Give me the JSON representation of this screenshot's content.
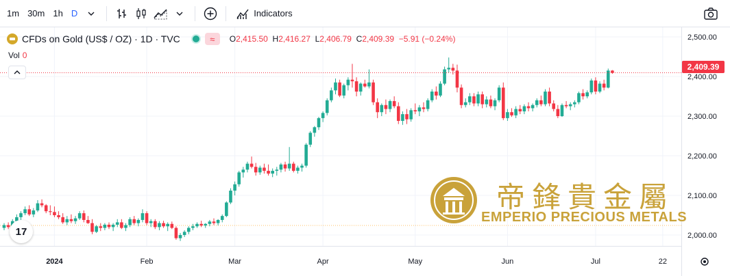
{
  "toolbar": {
    "intervals": [
      {
        "label": "1m",
        "active": false
      },
      {
        "label": "30m",
        "active": false
      },
      {
        "label": "1h",
        "active": false
      },
      {
        "label": "D",
        "active": true
      }
    ],
    "indicators_label": "Indicators",
    "icons": [
      "chevron-down-icon",
      "bar-style-icon",
      "candle-style-icon",
      "area-style-icon",
      "chevron-down-icon",
      "plus-circle-icon",
      "indicators-icon",
      "camera-icon"
    ]
  },
  "legend": {
    "symbol": "CFDs on Gold (US$ / OZ) · 1D · TVC",
    "o_key": "O",
    "o": "2,415.50",
    "h_key": "H",
    "h": "2,416.27",
    "l_key": "L",
    "l": "2,406.79",
    "c_key": "C",
    "c": "2,409.39",
    "change": "−5.91 (−0.24%)",
    "vol_label": "Vol",
    "vol_value": "0"
  },
  "price_label": "2,409.39",
  "watermark": {
    "cn": "帝鋒貴金屬",
    "en": "EMPERIO PRECIOUS METALS"
  },
  "colors": {
    "up": "#22ab94",
    "down": "#f23645",
    "gold": "#c9a23a",
    "accent": "#2962ff"
  },
  "chart_data": {
    "type": "candlestick",
    "title": "CFDs on Gold (US$ / OZ) · 1D · TVC",
    "ylim": [
      1980,
      2510
    ],
    "yticks": [
      {
        "v": 2000,
        "label": "2,000.00"
      },
      {
        "v": 2100,
        "label": "2,100.00"
      },
      {
        "v": 2200,
        "label": "2,200.00"
      },
      {
        "v": 2300,
        "label": "2,300.00"
      },
      {
        "v": 2400,
        "label": "2,400.00"
      },
      {
        "v": 2500,
        "label": "2,500.00"
      }
    ],
    "xticks": [
      {
        "i": 12,
        "label": "2024",
        "bold": true
      },
      {
        "i": 34,
        "label": "Feb",
        "bold": false
      },
      {
        "i": 55,
        "label": "Mar",
        "bold": false
      },
      {
        "i": 76,
        "label": "Apr",
        "bold": false
      },
      {
        "i": 98,
        "label": "May",
        "bold": false
      },
      {
        "i": 120,
        "label": "Jun",
        "bold": false
      },
      {
        "i": 141,
        "label": "Jul",
        "bold": false
      },
      {
        "i": 157,
        "label": "22",
        "bold": false
      }
    ],
    "last_price": 2409.39,
    "candles": [
      [
        2018,
        2030,
        2012,
        2025
      ],
      [
        2025,
        2032,
        2015,
        2020
      ],
      [
        2020,
        2040,
        2018,
        2035
      ],
      [
        2035,
        2052,
        2028,
        2045
      ],
      [
        2045,
        2060,
        2038,
        2055
      ],
      [
        2055,
        2072,
        2050,
        2065
      ],
      [
        2065,
        2075,
        2048,
        2052
      ],
      [
        2052,
        2068,
        2045,
        2062
      ],
      [
        2062,
        2088,
        2058,
        2080
      ],
      [
        2080,
        2090,
        2070,
        2075
      ],
      [
        2075,
        2078,
        2055,
        2060
      ],
      [
        2060,
        2075,
        2050,
        2058
      ],
      [
        2058,
        2072,
        2045,
        2050
      ],
      [
        2050,
        2060,
        2040,
        2045
      ],
      [
        2045,
        2055,
        2028,
        2032
      ],
      [
        2032,
        2048,
        2025,
        2040
      ],
      [
        2040,
        2052,
        2030,
        2035
      ],
      [
        2035,
        2048,
        2028,
        2042
      ],
      [
        2042,
        2060,
        2038,
        2055
      ],
      [
        2055,
        2062,
        2032,
        2038
      ],
      [
        2038,
        2048,
        2028,
        2030
      ],
      [
        2030,
        2040,
        2002,
        2008
      ],
      [
        2008,
        2025,
        2005,
        2022
      ],
      [
        2022,
        2030,
        2010,
        2018
      ],
      [
        2018,
        2030,
        2012,
        2026
      ],
      [
        2026,
        2032,
        2015,
        2020
      ],
      [
        2020,
        2030,
        2010,
        2026
      ],
      [
        2026,
        2040,
        2020,
        2032
      ],
      [
        2032,
        2040,
        2015,
        2018
      ],
      [
        2018,
        2030,
        2010,
        2025
      ],
      [
        2025,
        2045,
        2020,
        2040
      ],
      [
        2040,
        2048,
        2025,
        2030
      ],
      [
        2030,
        2042,
        2022,
        2038
      ],
      [
        2038,
        2065,
        2032,
        2055
      ],
      [
        2055,
        2060,
        2025,
        2030
      ],
      [
        2030,
        2040,
        2020,
        2035
      ],
      [
        2035,
        2040,
        2015,
        2020
      ],
      [
        2020,
        2035,
        2012,
        2030
      ],
      [
        2030,
        2036,
        2018,
        2022
      ],
      [
        2022,
        2032,
        2010,
        2028
      ],
      [
        2028,
        2034,
        2015,
        2018
      ],
      [
        2018,
        2022,
        1988,
        1992
      ],
      [
        1992,
        2005,
        1985,
        2000
      ],
      [
        2000,
        2012,
        1995,
        2008
      ],
      [
        2008,
        2022,
        2002,
        2018
      ],
      [
        2018,
        2028,
        2012,
        2022
      ],
      [
        2022,
        2032,
        2018,
        2028
      ],
      [
        2028,
        2036,
        2020,
        2024
      ],
      [
        2024,
        2030,
        2018,
        2028
      ],
      [
        2028,
        2038,
        2022,
        2034
      ],
      [
        2034,
        2042,
        2025,
        2030
      ],
      [
        2030,
        2040,
        2024,
        2038
      ],
      [
        2038,
        2052,
        2032,
        2048
      ],
      [
        2048,
        2085,
        2045,
        2082
      ],
      [
        2082,
        2118,
        2078,
        2112
      ],
      [
        2112,
        2135,
        2100,
        2128
      ],
      [
        2128,
        2162,
        2122,
        2158
      ],
      [
        2158,
        2172,
        2145,
        2165
      ],
      [
        2165,
        2185,
        2158,
        2180
      ],
      [
        2180,
        2198,
        2168,
        2172
      ],
      [
        2172,
        2182,
        2150,
        2158
      ],
      [
        2158,
        2175,
        2152,
        2170
      ],
      [
        2170,
        2180,
        2155,
        2162
      ],
      [
        2162,
        2178,
        2150,
        2155
      ],
      [
        2155,
        2168,
        2146,
        2162
      ],
      [
        2162,
        2172,
        2150,
        2165
      ],
      [
        2165,
        2182,
        2158,
        2178
      ],
      [
        2178,
        2185,
        2160,
        2168
      ],
      [
        2168,
        2222,
        2162,
        2180
      ],
      [
        2180,
        2185,
        2158,
        2162
      ],
      [
        2162,
        2175,
        2155,
        2170
      ],
      [
        2170,
        2180,
        2160,
        2175
      ],
      [
        2175,
        2232,
        2170,
        2228
      ],
      [
        2228,
        2262,
        2222,
        2258
      ],
      [
        2258,
        2275,
        2248,
        2272
      ],
      [
        2272,
        2298,
        2265,
        2295
      ],
      [
        2295,
        2312,
        2285,
        2308
      ],
      [
        2308,
        2345,
        2302,
        2340
      ],
      [
        2340,
        2372,
        2335,
        2365
      ],
      [
        2365,
        2395,
        2355,
        2385
      ],
      [
        2385,
        2392,
        2348,
        2352
      ],
      [
        2352,
        2382,
        2345,
        2378
      ],
      [
        2378,
        2398,
        2365,
        2392
      ],
      [
        2392,
        2432,
        2372,
        2388
      ],
      [
        2388,
        2398,
        2350,
        2362
      ],
      [
        2362,
        2385,
        2352,
        2382
      ],
      [
        2382,
        2392,
        2372,
        2375
      ],
      [
        2375,
        2418,
        2370,
        2385
      ],
      [
        2385,
        2392,
        2328,
        2335
      ],
      [
        2335,
        2345,
        2295,
        2310
      ],
      [
        2310,
        2332,
        2300,
        2328
      ],
      [
        2328,
        2342,
        2305,
        2318
      ],
      [
        2318,
        2342,
        2310,
        2338
      ],
      [
        2338,
        2350,
        2320,
        2325
      ],
      [
        2325,
        2335,
        2280,
        2288
      ],
      [
        2288,
        2312,
        2278,
        2305
      ],
      [
        2305,
        2318,
        2280,
        2292
      ],
      [
        2292,
        2320,
        2286,
        2315
      ],
      [
        2315,
        2332,
        2305,
        2312
      ],
      [
        2312,
        2328,
        2300,
        2322
      ],
      [
        2322,
        2335,
        2310,
        2318
      ],
      [
        2318,
        2345,
        2312,
        2340
      ],
      [
        2340,
        2368,
        2335,
        2362
      ],
      [
        2362,
        2375,
        2342,
        2352
      ],
      [
        2352,
        2388,
        2348,
        2382
      ],
      [
        2382,
        2425,
        2378,
        2418
      ],
      [
        2418,
        2448,
        2410,
        2422
      ],
      [
        2422,
        2432,
        2405,
        2415
      ],
      [
        2415,
        2430,
        2360,
        2372
      ],
      [
        2372,
        2380,
        2320,
        2328
      ],
      [
        2328,
        2345,
        2322,
        2335
      ],
      [
        2335,
        2358,
        2328,
        2350
      ],
      [
        2350,
        2358,
        2325,
        2332
      ],
      [
        2332,
        2362,
        2325,
        2355
      ],
      [
        2355,
        2362,
        2320,
        2330
      ],
      [
        2330,
        2350,
        2322,
        2342
      ],
      [
        2342,
        2352,
        2320,
        2325
      ],
      [
        2325,
        2345,
        2315,
        2340
      ],
      [
        2340,
        2378,
        2335,
        2372
      ],
      [
        2372,
        2385,
        2290,
        2295
      ],
      [
        2295,
        2318,
        2288,
        2310
      ],
      [
        2310,
        2320,
        2298,
        2302
      ],
      [
        2302,
        2325,
        2295,
        2318
      ],
      [
        2318,
        2328,
        2305,
        2312
      ],
      [
        2312,
        2330,
        2305,
        2325
      ],
      [
        2325,
        2335,
        2312,
        2320
      ],
      [
        2320,
        2332,
        2312,
        2328
      ],
      [
        2328,
        2345,
        2322,
        2340
      ],
      [
        2340,
        2352,
        2325,
        2330
      ],
      [
        2330,
        2368,
        2325,
        2362
      ],
      [
        2362,
        2372,
        2325,
        2332
      ],
      [
        2332,
        2340,
        2312,
        2318
      ],
      [
        2318,
        2328,
        2295,
        2300
      ],
      [
        2300,
        2332,
        2298,
        2328
      ],
      [
        2328,
        2338,
        2320,
        2325
      ],
      [
        2325,
        2335,
        2315,
        2330
      ],
      [
        2330,
        2340,
        2322,
        2335
      ],
      [
        2335,
        2362,
        2330,
        2358
      ],
      [
        2358,
        2368,
        2342,
        2350
      ],
      [
        2350,
        2365,
        2345,
        2360
      ],
      [
        2360,
        2395,
        2355,
        2390
      ],
      [
        2390,
        2398,
        2355,
        2362
      ],
      [
        2362,
        2388,
        2358,
        2382
      ],
      [
        2382,
        2392,
        2365,
        2372
      ],
      [
        2372,
        2420,
        2370,
        2415
      ],
      [
        2415,
        2416.27,
        2406.79,
        2409.39
      ]
    ]
  }
}
